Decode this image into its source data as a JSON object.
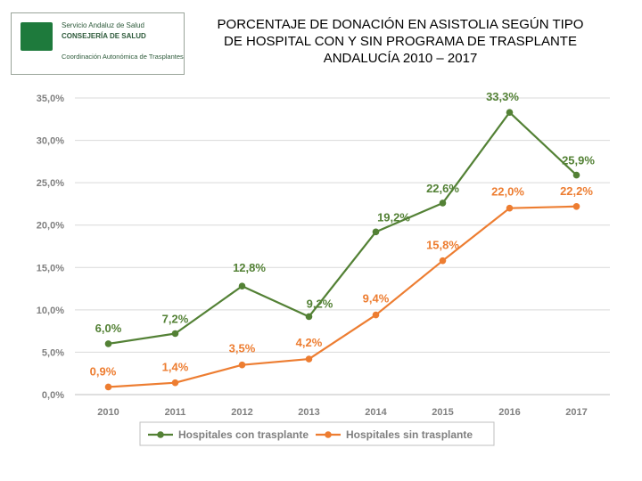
{
  "logo": {
    "line1": "Servicio Andaluz de Salud",
    "line2": "CONSEJERÍA DE SALUD",
    "line3": "Coordinación Autonómica de Trasplantes"
  },
  "title": {
    "line1": "PORCENTAJE DE DONACIÓN EN ASISTOLIA SEGÚN TIPO",
    "line2": "DE HOSPITAL CON Y SIN PROGRAMA DE TRASPLANTE",
    "line3": "ANDALUCÍA 2010 – 2017"
  },
  "chart_data": {
    "type": "line",
    "x": [
      "2010",
      "2011",
      "2012",
      "2013",
      "2014",
      "2015",
      "2016",
      "2017"
    ],
    "ylim": [
      0,
      35
    ],
    "yticks": [
      0,
      5,
      10,
      15,
      20,
      25,
      30,
      35
    ],
    "ytick_labels": [
      "0,0%",
      "5,0%",
      "10,0%",
      "15,0%",
      "20,0%",
      "25,0%",
      "30,0%",
      "35,0%"
    ],
    "grid": true,
    "legend_position": "bottom",
    "series": [
      {
        "name": "Hospitales con trasplante",
        "color": "#538135",
        "values": [
          6.0,
          7.2,
          12.8,
          9.2,
          19.2,
          22.6,
          33.3,
          25.9
        ],
        "labels": [
          "6,0%",
          "7,2%",
          "12,8%",
          "9,2%",
          "19,2%",
          "22,6%",
          "33,3%",
          "25,9%"
        ]
      },
      {
        "name": "Hospitales sin trasplante",
        "color": "#ED7D31",
        "values": [
          0.9,
          1.4,
          3.5,
          4.2,
          9.4,
          15.8,
          22.0,
          22.2
        ],
        "labels": [
          "0,9%",
          "1,4%",
          "3,5%",
          "4,2%",
          "9,4%",
          "15,8%",
          "22,0%",
          "22,2%"
        ]
      }
    ]
  }
}
